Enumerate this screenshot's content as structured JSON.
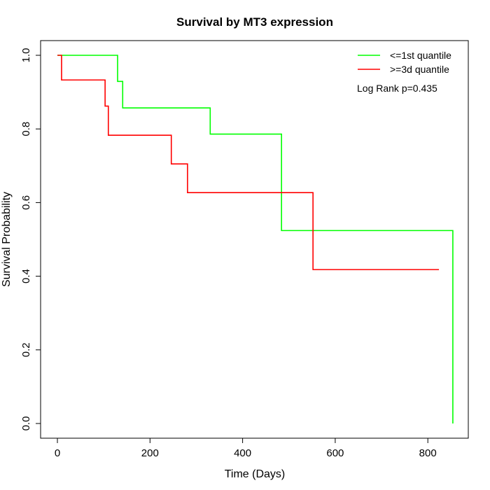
{
  "chart_data": {
    "type": "line",
    "title": "Survival by MT3 expression",
    "xlabel": "Time (Days)",
    "ylabel": "Survival Probability",
    "xlim": [
      0,
      850
    ],
    "ylim": [
      0,
      1
    ],
    "xticks": [
      0,
      200,
      400,
      600,
      800
    ],
    "yticks": [
      "0.0",
      "0.2",
      "0.4",
      "0.6",
      "0.8",
      "1.0"
    ],
    "grid": false,
    "legend_position": "top-right",
    "annotation": "Log Rank p=0.435",
    "series": [
      {
        "name": "<=1st quantile",
        "color": "#00ff00",
        "steps": [
          [
            0,
            1.0
          ],
          [
            130,
            0.929
          ],
          [
            141,
            0.857
          ],
          [
            330,
            0.786
          ],
          [
            484,
            0.524
          ],
          [
            854,
            0.0
          ]
        ],
        "end": 854
      },
      {
        "name": ">=3d quantile",
        "color": "#ff0000",
        "steps": [
          [
            0,
            1.0
          ],
          [
            9,
            0.933
          ],
          [
            103,
            0.862
          ],
          [
            110,
            0.783
          ],
          [
            246,
            0.705
          ],
          [
            281,
            0.627
          ],
          [
            552,
            0.418
          ]
        ],
        "end": 824
      }
    ]
  }
}
